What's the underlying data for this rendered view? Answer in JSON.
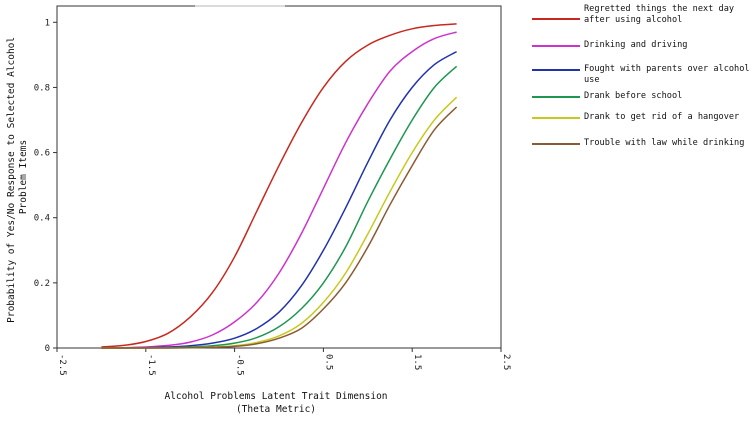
{
  "chart_data": {
    "type": "line",
    "xlabel": [
      "Alcohol Problems Latent Trait Dimension",
      "(Theta Metric)"
    ],
    "ylabel": [
      "Probability of Yes/No Response to Selected Alcohol",
      "Problem Items"
    ],
    "xlim": [
      -2.5,
      2.5
    ],
    "ylim": [
      0,
      1.05
    ],
    "x_ticks": [
      -2.5,
      -1.5,
      -0.5,
      0.5,
      1.5,
      2.5
    ],
    "x_tick_labels": [
      "-2.5",
      "-1.5",
      "-0.5",
      "0.5",
      "1.5",
      "2.5"
    ],
    "y_ticks": [
      0,
      0.2,
      0.4,
      0.6,
      0.8,
      1
    ],
    "y_tick_labels": [
      "0",
      "0.2",
      "0.4",
      "0.6",
      "0.8",
      "1"
    ],
    "grid": false,
    "legend_position": "right",
    "x": [
      -2,
      -1.75,
      -1.5,
      -1.25,
      -1,
      -0.75,
      -0.5,
      -0.25,
      0,
      0.25,
      0.5,
      0.75,
      1,
      1.25,
      1.5,
      1.75,
      2
    ],
    "series": [
      {
        "name": "Regretted things the next day after using alcohol",
        "color": "#c8281e",
        "values": [
          0.003,
          0.008,
          0.02,
          0.045,
          0.095,
          0.17,
          0.28,
          0.42,
          0.56,
          0.69,
          0.8,
          0.88,
          0.93,
          0.96,
          0.98,
          0.99,
          0.995
        ]
      },
      {
        "name": "Drinking and driving",
        "color": "#cc33cc",
        "values": [
          0.0,
          0.001,
          0.003,
          0.008,
          0.018,
          0.04,
          0.08,
          0.14,
          0.23,
          0.35,
          0.49,
          0.63,
          0.75,
          0.85,
          0.91,
          0.95,
          0.97
        ]
      },
      {
        "name": "Fought with parents over alcohol use",
        "color": "#2233aa",
        "values": [
          0.0,
          0.0,
          0.001,
          0.003,
          0.007,
          0.015,
          0.03,
          0.06,
          0.11,
          0.19,
          0.3,
          0.43,
          0.57,
          0.7,
          0.8,
          0.87,
          0.91
        ]
      },
      {
        "name": "Drank before school",
        "color": "#1e9650",
        "values": [
          0.0,
          0.0,
          0.0,
          0.001,
          0.003,
          0.007,
          0.015,
          0.032,
          0.065,
          0.12,
          0.2,
          0.31,
          0.45,
          0.58,
          0.7,
          0.8,
          0.865
        ]
      },
      {
        "name": "Drank to get rid of a hangover",
        "color": "#c8c81e",
        "values": [
          0.0,
          0.0,
          0.0,
          0.0,
          0.001,
          0.003,
          0.007,
          0.017,
          0.037,
          0.075,
          0.14,
          0.23,
          0.35,
          0.48,
          0.6,
          0.7,
          0.77
        ]
      },
      {
        "name": "Trouble with law while drinking",
        "color": "#8b5a32",
        "values": [
          0.0,
          0.0,
          0.0,
          0.0,
          0.001,
          0.002,
          0.005,
          0.013,
          0.03,
          0.06,
          0.12,
          0.2,
          0.31,
          0.44,
          0.56,
          0.67,
          0.74
        ]
      }
    ]
  },
  "legend_entries": [
    {
      "label": "Regretted things the next day after using alcohol",
      "color": "#c8281e"
    },
    {
      "label": "Drinking and driving",
      "color": "#cc33cc"
    },
    {
      "label": "Fought with parents over alcohol use",
      "color": "#2233aa"
    },
    {
      "label": "Drank before school",
      "color": "#1e9650"
    },
    {
      "label": "Drank to get rid of a hangover",
      "color": "#c8c81e"
    },
    {
      "label": "Trouble with law while drinking",
      "color": "#8b5a32"
    }
  ]
}
